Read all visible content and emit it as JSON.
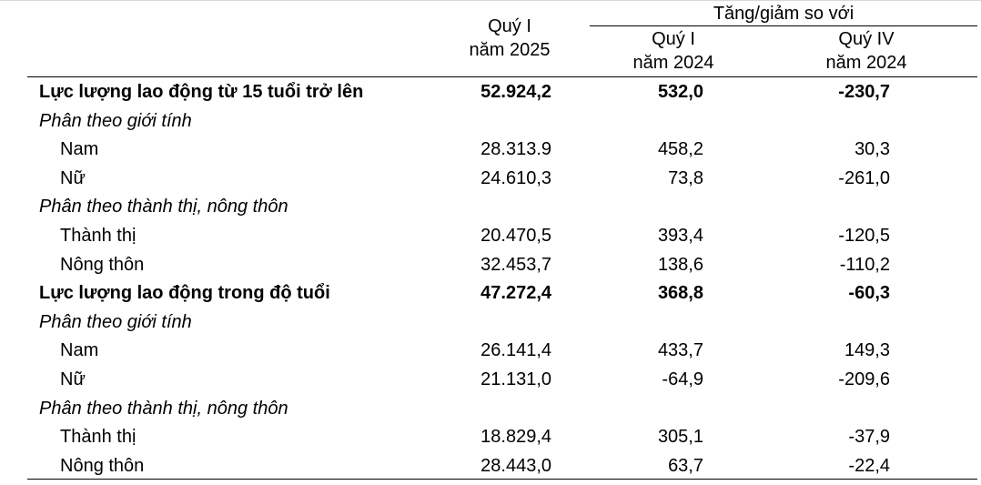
{
  "header": {
    "col1_line1": "Quý I",
    "col1_line2": "năm 2025",
    "group_label": "Tăng/giảm so với",
    "col2_line1": "Quý I",
    "col2_line2": "năm 2024",
    "col3_line1": "Quý IV",
    "col3_line2": "năm 2024"
  },
  "rows": [
    {
      "label": "Lực lượng lao động từ 15 tuổi trở lên",
      "q1_2025": "52.924,2",
      "vs_q1_2024": "532,0",
      "vs_q4_2024": "-230,7"
    },
    {
      "label": "Phân theo giới tính",
      "q1_2025": "",
      "vs_q1_2024": "",
      "vs_q4_2024": ""
    },
    {
      "label": "Nam",
      "q1_2025": "28.313.9",
      "vs_q1_2024": "458,2",
      "vs_q4_2024": "30,3"
    },
    {
      "label": "Nữ",
      "q1_2025": "24.610,3",
      "vs_q1_2024": "73,8",
      "vs_q4_2024": "-261,0"
    },
    {
      "label": "Phân theo thành thị, nông thôn",
      "q1_2025": "",
      "vs_q1_2024": "",
      "vs_q4_2024": ""
    },
    {
      "label": "Thành thị",
      "q1_2025": "20.470,5",
      "vs_q1_2024": "393,4",
      "vs_q4_2024": "-120,5"
    },
    {
      "label": "Nông thôn",
      "q1_2025": "32.453,7",
      "vs_q1_2024": "138,6",
      "vs_q4_2024": "-110,2"
    },
    {
      "label": "Lực lượng lao động trong độ tuổi",
      "q1_2025": "47.272,4",
      "vs_q1_2024": "368,8",
      "vs_q4_2024": "-60,3"
    },
    {
      "label": "Phân theo giới tính",
      "q1_2025": "",
      "vs_q1_2024": "",
      "vs_q4_2024": ""
    },
    {
      "label": "Nam",
      "q1_2025": "26.141,4",
      "vs_q1_2024": "433,7",
      "vs_q4_2024": "149,3"
    },
    {
      "label": "Nữ",
      "q1_2025": "21.131,0",
      "vs_q1_2024": "-64,9",
      "vs_q4_2024": "-209,6"
    },
    {
      "label": "Phân theo thành thị, nông thôn",
      "q1_2025": "",
      "vs_q1_2024": "",
      "vs_q4_2024": ""
    },
    {
      "label": "Thành thị",
      "q1_2025": "18.829,4",
      "vs_q1_2024": "305,1",
      "vs_q4_2024": "-37,9"
    },
    {
      "label": "Nông thôn",
      "q1_2025": "28.443,0",
      "vs_q1_2024": "63,7",
      "vs_q4_2024": "-22,4"
    }
  ]
}
